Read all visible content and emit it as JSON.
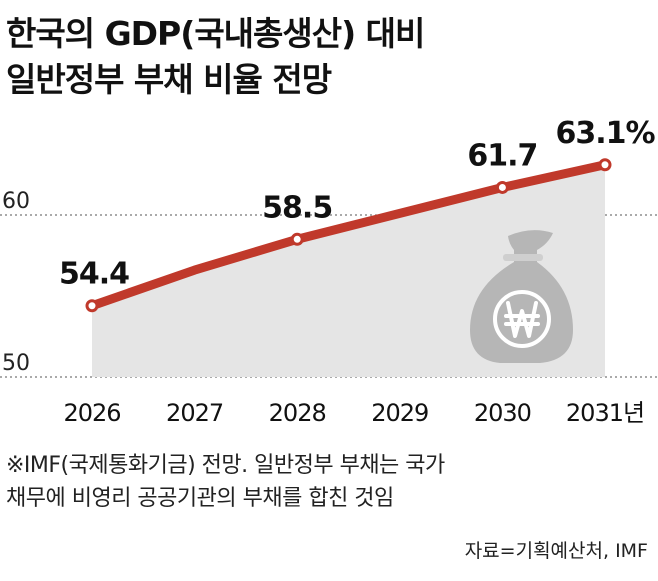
{
  "title_lines": [
    "한국의 GDP(국내총생산) 대비",
    "일반정부 부채 비율 전망"
  ],
  "note_lines": [
    "※IMF(국제통화기금) 전망. 일반정부 부채는 국가",
    "채무에 비영리 공공기관의 부채를 합친 것임"
  ],
  "source": "자료=기획예산처, IMF",
  "chart_data": {
    "type": "line",
    "x": [
      2026,
      2027,
      2028,
      2029,
      2030,
      2031
    ],
    "x_tick_labels": [
      "2026",
      "2027",
      "2028",
      "2029",
      "2030",
      "2031년"
    ],
    "series": [
      {
        "values": [
          54.4,
          56.6,
          58.5,
          60.1,
          61.7,
          63.1
        ],
        "color": "#c0392b"
      }
    ],
    "data_labels": [
      {
        "index": 0,
        "text": "54.4"
      },
      {
        "index": 2,
        "text": "58.5"
      },
      {
        "index": 4,
        "text": "61.7"
      },
      {
        "index": 5,
        "text": "63.1%"
      }
    ],
    "y_tick_labels": [
      {
        "value": 60,
        "text": "60"
      },
      {
        "value": 50,
        "text": "50"
      }
    ],
    "area_fill": "#e5e5e5",
    "grid": "dashed at y ticks",
    "icon": "money-bag-won-icon"
  }
}
